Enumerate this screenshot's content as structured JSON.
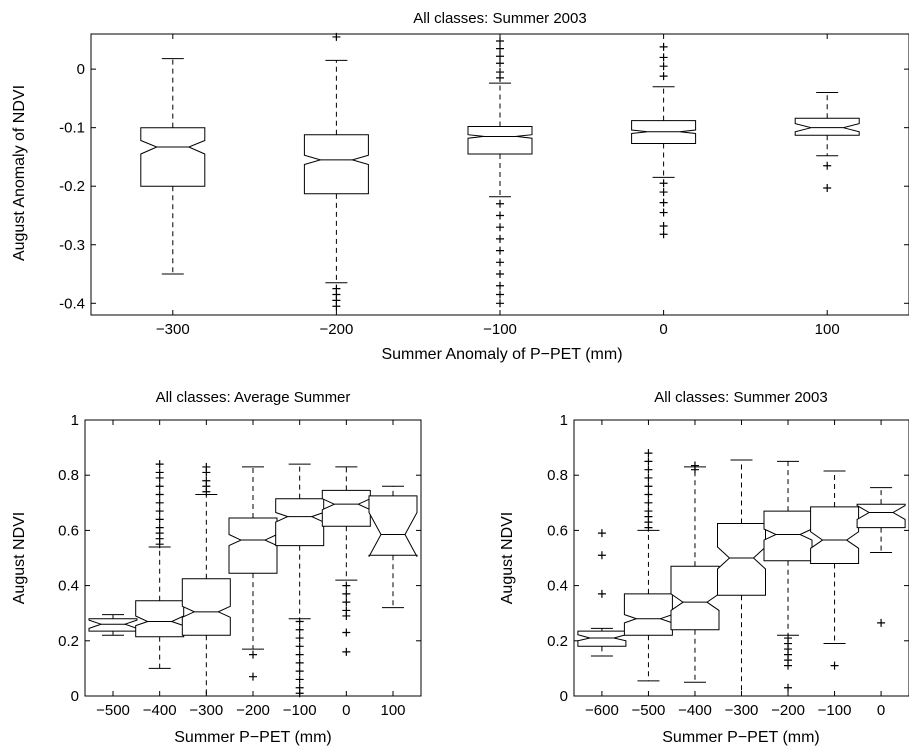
{
  "chart_data": [
    {
      "type": "boxplot",
      "title": "All classes: Summer 2003",
      "xlabel": "Summer Anomaly of P−PET (mm)",
      "ylabel": "August Anomaly of NDVI",
      "xlim": [
        -350,
        150
      ],
      "ylim": [
        -0.42,
        0.06
      ],
      "xticks": [
        -300,
        -200,
        -100,
        0,
        100
      ],
      "xtick_labels": [
        "−300",
        "−200",
        "−100",
        "0",
        "100"
      ],
      "yticks": [
        -0.4,
        -0.3,
        -0.2,
        -0.1,
        0
      ],
      "ytick_labels": [
        "-0.4",
        "-0.3",
        "-0.2",
        "-0.1",
        "0"
      ],
      "box_half_width": 32,
      "boxes": [
        {
          "x": -300,
          "q1": -0.2,
          "median": -0.133,
          "q3": -0.1,
          "notch_low": -0.145,
          "notch_high": -0.122,
          "whisker_low": -0.35,
          "whisker_high": 0.018,
          "outliers": []
        },
        {
          "x": -200,
          "q1": -0.213,
          "median": -0.155,
          "q3": -0.112,
          "notch_low": -0.163,
          "notch_high": -0.147,
          "whisker_low": -0.365,
          "whisker_high": 0.015,
          "outliers": [
            0.055,
            -0.375,
            -0.385,
            -0.395,
            -0.405
          ]
        },
        {
          "x": -100,
          "q1": -0.145,
          "median": -0.115,
          "q3": -0.098,
          "notch_low": -0.118,
          "notch_high": -0.112,
          "whisker_low": -0.218,
          "whisker_high": -0.024,
          "outliers": [
            0.048,
            0.035,
            0.022,
            0.01,
            -0.005,
            -0.015,
            -0.23,
            -0.25,
            -0.27,
            -0.29,
            -0.31,
            -0.33,
            -0.35,
            -0.37,
            -0.385,
            -0.4
          ]
        },
        {
          "x": 0,
          "q1": -0.127,
          "median": -0.107,
          "q3": -0.088,
          "notch_low": -0.11,
          "notch_high": -0.104,
          "whisker_low": -0.185,
          "whisker_high": -0.03,
          "outliers": [
            0.038,
            0.02,
            0.005,
            -0.012,
            -0.195,
            -0.21,
            -0.228,
            -0.245,
            -0.268,
            -0.282
          ]
        },
        {
          "x": 100,
          "q1": -0.113,
          "median": -0.1,
          "q3": -0.084,
          "notch_low": -0.107,
          "notch_high": -0.093,
          "whisker_low": -0.148,
          "whisker_high": -0.04,
          "outliers": [
            -0.165,
            -0.203
          ]
        }
      ]
    },
    {
      "type": "boxplot",
      "title": "All classes: Average Summer",
      "xlabel": "Summer P−PET (mm)",
      "ylabel": "August NDVI",
      "xlim": [
        -560,
        160
      ],
      "ylim": [
        0,
        1
      ],
      "xticks": [
        -500,
        -400,
        -300,
        -200,
        -100,
        0,
        100
      ],
      "xtick_labels": [
        "−500",
        "−400",
        "−300",
        "−200",
        "−100",
        "0",
        "100"
      ],
      "yticks": [
        0,
        0.2,
        0.4,
        0.6,
        0.8,
        1
      ],
      "ytick_labels": [
        "0",
        "0.2",
        "0.4",
        "0.6",
        "0.8",
        "1"
      ],
      "box_half_width": 24,
      "boxes": [
        {
          "x": -500,
          "q1": 0.235,
          "median": 0.26,
          "q3": 0.28,
          "notch_low": 0.245,
          "notch_high": 0.275,
          "whisker_low": 0.22,
          "whisker_high": 0.295,
          "outliers": []
        },
        {
          "x": -400,
          "q1": 0.215,
          "median": 0.27,
          "q3": 0.345,
          "notch_low": 0.255,
          "notch_high": 0.29,
          "whisker_low": 0.1,
          "whisker_high": 0.54,
          "outliers": [
            0.55,
            0.57,
            0.59,
            0.61,
            0.64,
            0.67,
            0.7,
            0.73,
            0.76,
            0.79,
            0.81,
            0.84
          ]
        },
        {
          "x": -300,
          "q1": 0.22,
          "median": 0.305,
          "q3": 0.425,
          "notch_low": 0.285,
          "notch_high": 0.325,
          "whisker_low": 0,
          "whisker_high": 0.73,
          "outliers": [
            0.74,
            0.76,
            0.78,
            0.81,
            0.83
          ]
        },
        {
          "x": -200,
          "q1": 0.445,
          "median": 0.565,
          "q3": 0.645,
          "notch_low": 0.545,
          "notch_high": 0.585,
          "whisker_low": 0.17,
          "whisker_high": 0.83,
          "outliers": [
            0.15,
            0.07
          ]
        },
        {
          "x": -100,
          "q1": 0.545,
          "median": 0.65,
          "q3": 0.715,
          "notch_low": 0.63,
          "notch_high": 0.665,
          "whisker_low": 0.28,
          "whisker_high": 0.84,
          "outliers": [
            0.27,
            0.24,
            0.21,
            0.18,
            0.15,
            0.12,
            0.09,
            0.06,
            0.03,
            0.01
          ]
        },
        {
          "x": 0,
          "q1": 0.615,
          "median": 0.695,
          "q3": 0.745,
          "notch_low": 0.675,
          "notch_high": 0.715,
          "whisker_low": 0.42,
          "whisker_high": 0.83,
          "outliers": [
            0.4,
            0.37,
            0.34,
            0.31,
            0.29,
            0.23,
            0.16
          ]
        },
        {
          "x": 100,
          "q1": 0.51,
          "median": 0.585,
          "q3": 0.725,
          "notch_low": 0.505,
          "notch_high": 0.665,
          "whisker_low": 0.32,
          "whisker_high": 0.76,
          "outliers": []
        }
      ]
    },
    {
      "type": "boxplot",
      "title": "All classes: Summer 2003",
      "xlabel": "Summer P−PET (mm)",
      "ylabel": "August NDVI",
      "xlim": [
        -660,
        60
      ],
      "ylim": [
        0,
        1
      ],
      "xticks": [
        -600,
        -500,
        -400,
        -300,
        -200,
        -100,
        0
      ],
      "xtick_labels": [
        "−600",
        "−500",
        "−400",
        "−300",
        "−200",
        "−100",
        "0"
      ],
      "yticks": [
        0,
        0.2,
        0.4,
        0.6,
        0.8,
        1
      ],
      "ytick_labels": [
        "0",
        "0.2",
        "0.4",
        "0.6",
        "0.8",
        "1"
      ],
      "box_half_width": 24,
      "boxes": [
        {
          "x": -600,
          "q1": 0.18,
          "median": 0.21,
          "q3": 0.235,
          "notch_low": 0.2,
          "notch_high": 0.222,
          "whisker_low": 0.145,
          "whisker_high": 0.245,
          "outliers": [
            0.37,
            0.51,
            0.59
          ]
        },
        {
          "x": -500,
          "q1": 0.22,
          "median": 0.28,
          "q3": 0.37,
          "notch_low": 0.265,
          "notch_high": 0.295,
          "whisker_low": 0.055,
          "whisker_high": 0.6,
          "outliers": [
            0.61,
            0.63,
            0.65,
            0.67,
            0.7,
            0.73,
            0.76,
            0.79,
            0.82,
            0.85,
            0.88
          ]
        },
        {
          "x": -400,
          "q1": 0.24,
          "median": 0.34,
          "q3": 0.47,
          "notch_low": 0.31,
          "notch_high": 0.37,
          "whisker_low": 0.05,
          "whisker_high": 0.83,
          "outliers": [
            0.82,
            0.835
          ]
        },
        {
          "x": -300,
          "q1": 0.365,
          "median": 0.5,
          "q3": 0.625,
          "notch_low": 0.46,
          "notch_high": 0.54,
          "whisker_low": 0,
          "whisker_high": 0.855,
          "outliers": []
        },
        {
          "x": -200,
          "q1": 0.49,
          "median": 0.585,
          "q3": 0.67,
          "notch_low": 0.565,
          "notch_high": 0.605,
          "whisker_low": 0.22,
          "whisker_high": 0.85,
          "outliers": [
            0.21,
            0.19,
            0.17,
            0.15,
            0.13,
            0.11,
            0.03
          ]
        },
        {
          "x": -100,
          "q1": 0.48,
          "median": 0.565,
          "q3": 0.685,
          "notch_low": 0.535,
          "notch_high": 0.595,
          "whisker_low": 0.19,
          "whisker_high": 0.815,
          "outliers": [
            0.11
          ]
        },
        {
          "x": 0,
          "q1": 0.61,
          "median": 0.665,
          "q3": 0.695,
          "notch_low": 0.64,
          "notch_high": 0.69,
          "whisker_low": 0.52,
          "whisker_high": 0.755,
          "outliers": [
            0.265
          ]
        }
      ]
    }
  ]
}
